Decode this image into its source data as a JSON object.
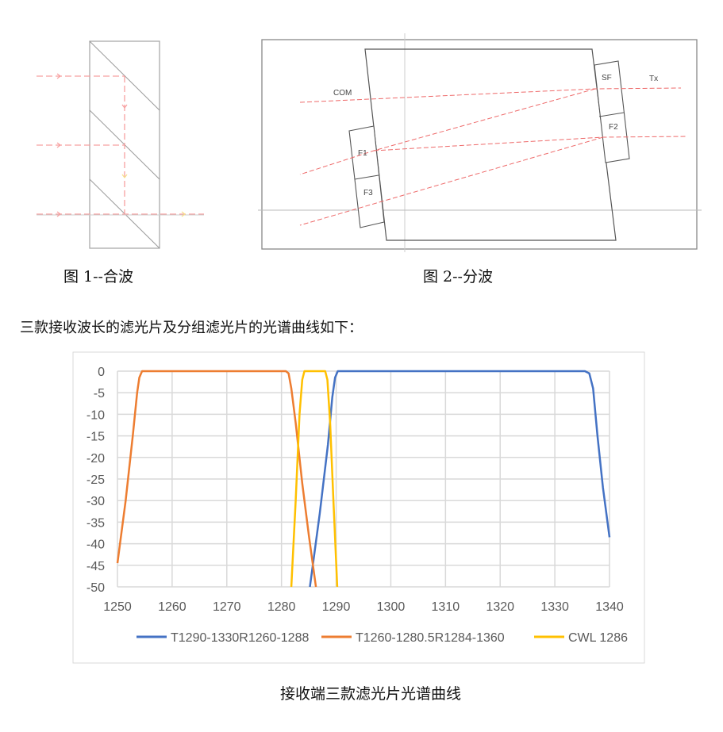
{
  "figure1": {
    "caption": "图 1--合波"
  },
  "figure2": {
    "caption": "图 2--分波",
    "labels": {
      "com": "COM",
      "tx": "Tx",
      "sf": "SF",
      "f1": "F1",
      "f2": "F2",
      "f3": "F3"
    }
  },
  "intro_text": "三款接收波长的滤光片及分组滤光片的光谱曲线如下：",
  "chart_caption": "接收端三款滤光片光谱曲线",
  "chart_data": {
    "type": "line",
    "title": "",
    "xlabel": "",
    "ylabel": "",
    "xlim": [
      1250,
      1340
    ],
    "ylim": [
      -50,
      0
    ],
    "xticks": [
      1250,
      1260,
      1270,
      1280,
      1290,
      1300,
      1310,
      1320,
      1330,
      1340
    ],
    "yticks": [
      0,
      -5,
      -10,
      -15,
      -20,
      -25,
      -30,
      -35,
      -40,
      -45,
      -50
    ],
    "grid": true,
    "legend_position": "bottom",
    "series": [
      {
        "name": "T1290-1330R1260-1288",
        "color": "#4472C4",
        "x": [
          1285.2,
          1287,
          1288.5,
          1289.3,
          1289.8,
          1290.3,
          1300,
          1320,
          1335.5,
          1336.3,
          1337,
          1337.8,
          1338.8,
          1340
        ],
        "y": [
          -50,
          -33,
          -17,
          -6,
          -1.5,
          0,
          0,
          0,
          0,
          -0.5,
          -4,
          -15,
          -27,
          -38.5
        ]
      },
      {
        "name": "T1260-1280.5R1284-1360",
        "color": "#ED7D31",
        "x": [
          1250,
          1251.5,
          1252.8,
          1253.6,
          1254.0,
          1254.5,
          1270,
          1280.8,
          1281.3,
          1281.8,
          1282.6,
          1283.8,
          1285,
          1286.3
        ],
        "y": [
          -44.5,
          -30,
          -15,
          -5,
          -1.5,
          0,
          0,
          0,
          -0.5,
          -4,
          -12,
          -26,
          -38,
          -50
        ]
      },
      {
        "name": "CWL 1286",
        "color": "#FFC000",
        "x": [
          1281.8,
          1282.6,
          1283.3,
          1283.8,
          1284.2,
          1288,
          1288.4,
          1288.9,
          1289.5,
          1290.2
        ],
        "y": [
          -50,
          -30,
          -10,
          -2,
          0,
          0,
          -2,
          -12,
          -30,
          -50
        ]
      }
    ]
  }
}
